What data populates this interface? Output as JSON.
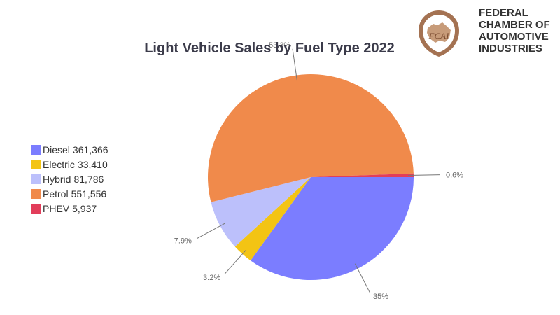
{
  "chart_data": {
    "type": "pie",
    "title": "Light Vehicle Sales by Fuel Type 2022",
    "slices": [
      {
        "name": "Diesel",
        "value": 361366,
        "value_label": "361,366",
        "percent_label": "35%",
        "color": "#7b7dff"
      },
      {
        "name": "Electric",
        "value": 33410,
        "value_label": "33,410",
        "percent_label": "3.2%",
        "color": "#f3c414"
      },
      {
        "name": "Hybrid",
        "value": 81786,
        "value_label": "81,786",
        "percent_label": "7.9%",
        "color": "#bcc0fb"
      },
      {
        "name": "Petrol",
        "value": 551556,
        "value_label": "551,556",
        "percent_label": "53.3%",
        "color": "#f08a4b"
      },
      {
        "name": "PHEV",
        "value": 5937,
        "value_label": "5,937",
        "percent_label": "0.6%",
        "color": "#e23d5a"
      }
    ],
    "legend_position": "left"
  },
  "brand": {
    "logo_text": "FCAI",
    "org_name_lines": [
      "FEDERAL",
      "CHAMBER OF",
      "AUTOMOTIVE",
      "INDUSTRIES"
    ]
  }
}
